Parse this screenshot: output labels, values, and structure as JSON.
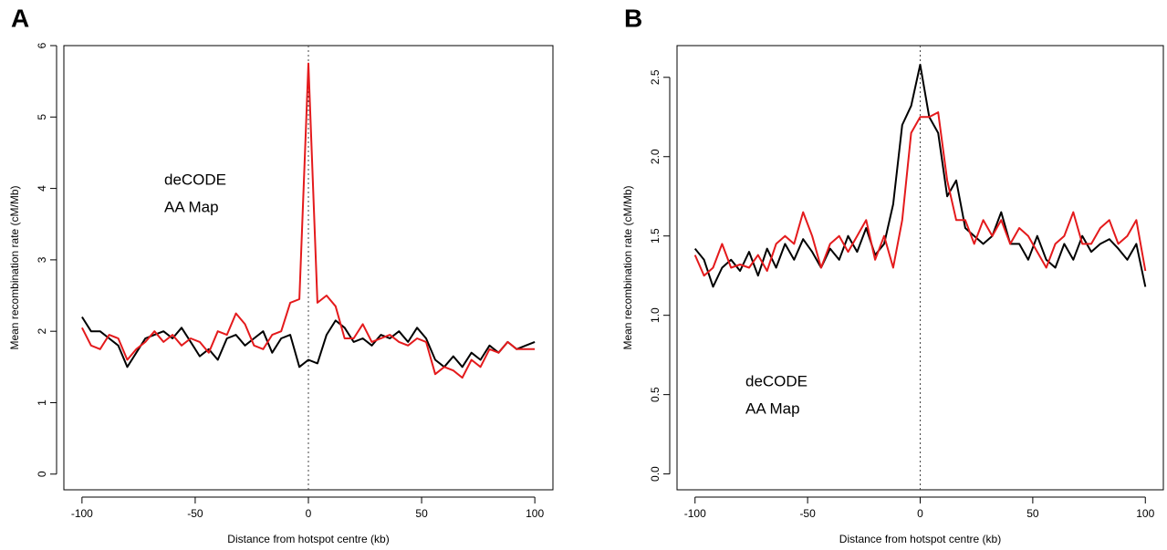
{
  "chart_data": [
    {
      "type": "line",
      "panel_label": "A",
      "xlabel": "Distance from hotspot centre (kb)",
      "ylabel": "Mean recombination rate (cM/Mb)",
      "xlim": [
        -108,
        108
      ],
      "ylim": [
        -0.22,
        6.0
      ],
      "xticks": [
        -100,
        -50,
        0,
        50,
        100
      ],
      "yticks": [
        0,
        1,
        2,
        3,
        4,
        5,
        6
      ],
      "vline": 0,
      "legend": "center-left",
      "x": [
        -100,
        -96,
        -92,
        -88,
        -84,
        -80,
        -76,
        -72,
        -68,
        -64,
        -60,
        -56,
        -52,
        -48,
        -44,
        -40,
        -36,
        -32,
        -28,
        -24,
        -20,
        -16,
        -12,
        -8,
        -4,
        0,
        4,
        8,
        12,
        16,
        20,
        24,
        28,
        32,
        36,
        40,
        44,
        48,
        52,
        56,
        60,
        64,
        68,
        72,
        76,
        80,
        84,
        88,
        92,
        96,
        100
      ],
      "series": [
        {
          "name": "deCODE",
          "color": "#000000",
          "values": [
            2.2,
            2.0,
            2.0,
            1.9,
            1.8,
            1.5,
            1.7,
            1.9,
            1.95,
            2.0,
            1.9,
            2.05,
            1.85,
            1.65,
            1.75,
            1.6,
            1.9,
            1.95,
            1.8,
            1.9,
            2.0,
            1.7,
            1.9,
            1.95,
            1.5,
            1.6,
            1.55,
            1.95,
            2.15,
            2.05,
            1.85,
            1.9,
            1.8,
            1.95,
            1.9,
            2.0,
            1.85,
            2.05,
            1.9,
            1.6,
            1.5,
            1.65,
            1.5,
            1.7,
            1.6,
            1.8,
            1.7,
            1.85,
            1.75,
            1.8,
            1.85
          ]
        },
        {
          "name": "AA Map",
          "color": "#e41a1c",
          "values": [
            2.05,
            1.8,
            1.75,
            1.95,
            1.9,
            1.6,
            1.75,
            1.85,
            2.0,
            1.85,
            1.95,
            1.8,
            1.9,
            1.85,
            1.7,
            2.0,
            1.95,
            2.25,
            2.1,
            1.8,
            1.75,
            1.95,
            2.0,
            2.4,
            2.45,
            5.75,
            2.4,
            2.5,
            2.35,
            1.9,
            1.9,
            2.1,
            1.85,
            1.9,
            1.95,
            1.85,
            1.8,
            1.9,
            1.85,
            1.4,
            1.5,
            1.45,
            1.35,
            1.6,
            1.5,
            1.75,
            1.7,
            1.85,
            1.75,
            1.75,
            1.75
          ]
        }
      ]
    },
    {
      "type": "line",
      "panel_label": "B",
      "xlabel": "Distance from hotspot centre (kb)",
      "ylabel": "Mean recombination rate (cM/Mb)",
      "xlim": [
        -108,
        108
      ],
      "ylim": [
        -0.1,
        2.7
      ],
      "xticks": [
        -100,
        -50,
        0,
        50,
        100
      ],
      "yticks": [
        {
          "value": 0,
          "label": "0.0"
        },
        0.5,
        {
          "value": 1,
          "label": "1.0"
        },
        1.5,
        {
          "value": 2,
          "label": "2.0"
        },
        2.5
      ],
      "vline": 0,
      "legend": "bottom-left",
      "x": [
        -100,
        -96,
        -92,
        -88,
        -84,
        -80,
        -76,
        -72,
        -68,
        -64,
        -60,
        -56,
        -52,
        -48,
        -44,
        -40,
        -36,
        -32,
        -28,
        -24,
        -20,
        -16,
        -12,
        -8,
        -4,
        0,
        4,
        8,
        12,
        16,
        20,
        24,
        28,
        32,
        36,
        40,
        44,
        48,
        52,
        56,
        60,
        64,
        68,
        72,
        76,
        80,
        84,
        88,
        92,
        96,
        100
      ],
      "series": [
        {
          "name": "deCODE",
          "color": "#000000",
          "values": [
            1.42,
            1.35,
            1.18,
            1.3,
            1.35,
            1.28,
            1.4,
            1.25,
            1.42,
            1.3,
            1.45,
            1.35,
            1.48,
            1.4,
            1.3,
            1.42,
            1.35,
            1.5,
            1.4,
            1.55,
            1.38,
            1.45,
            1.7,
            2.2,
            2.32,
            2.58,
            2.25,
            2.15,
            1.75,
            1.85,
            1.55,
            1.5,
            1.45,
            1.5,
            1.65,
            1.45,
            1.45,
            1.35,
            1.5,
            1.35,
            1.3,
            1.45,
            1.35,
            1.5,
            1.4,
            1.45,
            1.48,
            1.42,
            1.35,
            1.45,
            1.18
          ]
        },
        {
          "name": "AA Map",
          "color": "#e41a1c",
          "values": [
            1.38,
            1.25,
            1.3,
            1.45,
            1.3,
            1.32,
            1.3,
            1.38,
            1.28,
            1.45,
            1.5,
            1.45,
            1.65,
            1.5,
            1.3,
            1.45,
            1.5,
            1.4,
            1.5,
            1.6,
            1.35,
            1.5,
            1.3,
            1.6,
            2.15,
            2.25,
            2.25,
            2.28,
            1.85,
            1.6,
            1.6,
            1.45,
            1.6,
            1.5,
            1.6,
            1.45,
            1.55,
            1.5,
            1.4,
            1.3,
            1.45,
            1.5,
            1.65,
            1.45,
            1.45,
            1.55,
            1.6,
            1.45,
            1.5,
            1.6,
            1.28
          ]
        }
      ]
    }
  ]
}
